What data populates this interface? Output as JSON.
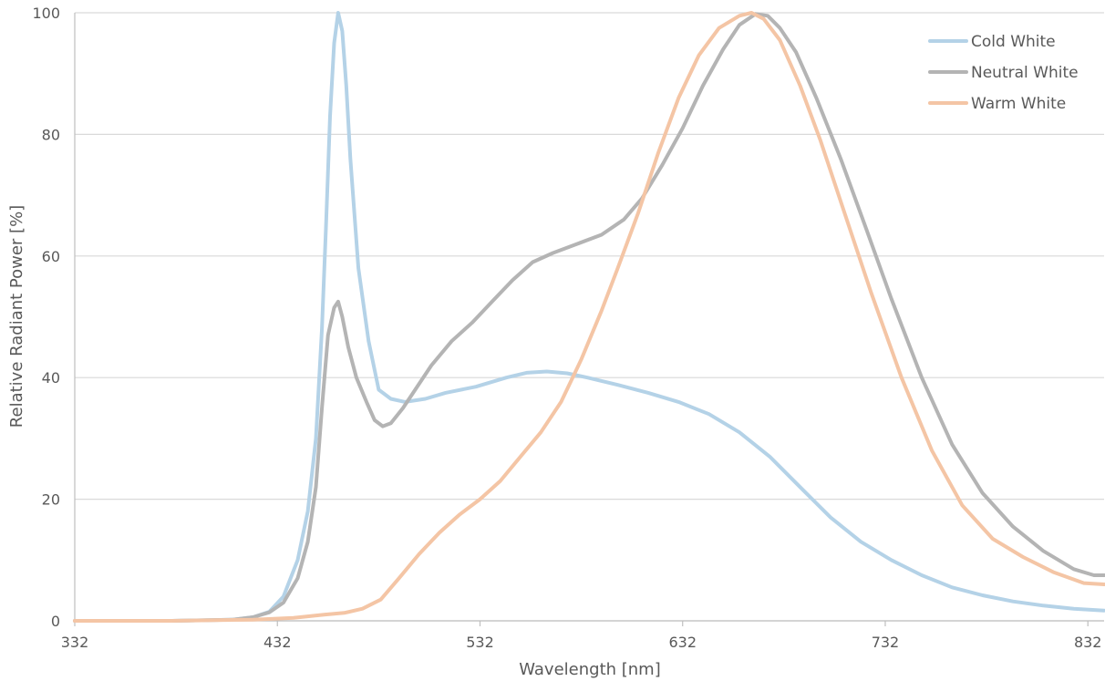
{
  "chart_data": {
    "type": "line",
    "title": "",
    "xlabel": "Wavelength [nm]",
    "ylabel": "Relative Radiant Power [%]",
    "xlim": [
      332,
      840
    ],
    "ylim": [
      0,
      100
    ],
    "x_ticks": [
      332,
      432,
      532,
      632,
      732,
      832
    ],
    "y_ticks": [
      0,
      20,
      40,
      60,
      80,
      100
    ],
    "grid": "horizontal",
    "legend_position": "top-right",
    "series": [
      {
        "name": "Cold White",
        "color": "#b4d2e7",
        "points": [
          [
            332,
            0
          ],
          [
            380,
            0
          ],
          [
            410,
            0.2
          ],
          [
            420,
            0.6
          ],
          [
            428,
            1.5
          ],
          [
            435,
            4
          ],
          [
            442,
            10
          ],
          [
            447,
            18
          ],
          [
            451,
            30
          ],
          [
            454,
            48
          ],
          [
            456,
            65
          ],
          [
            458,
            83
          ],
          [
            460,
            95
          ],
          [
            462,
            100
          ],
          [
            464,
            97
          ],
          [
            466,
            88
          ],
          [
            468,
            76
          ],
          [
            472,
            58
          ],
          [
            477,
            46
          ],
          [
            482,
            38
          ],
          [
            488,
            36.5
          ],
          [
            495,
            36
          ],
          [
            505,
            36.5
          ],
          [
            515,
            37.5
          ],
          [
            530,
            38.5
          ],
          [
            545,
            40
          ],
          [
            555,
            40.8
          ],
          [
            565,
            41
          ],
          [
            575,
            40.7
          ],
          [
            585,
            40
          ],
          [
            600,
            38.8
          ],
          [
            615,
            37.5
          ],
          [
            630,
            36
          ],
          [
            645,
            34
          ],
          [
            660,
            31
          ],
          [
            675,
            27
          ],
          [
            690,
            22
          ],
          [
            705,
            17
          ],
          [
            720,
            13
          ],
          [
            735,
            10
          ],
          [
            750,
            7.5
          ],
          [
            765,
            5.5
          ],
          [
            780,
            4.2
          ],
          [
            795,
            3.2
          ],
          [
            810,
            2.5
          ],
          [
            825,
            2
          ],
          [
            840,
            1.7
          ]
        ]
      },
      {
        "name": "Neutral White",
        "color": "#b4b4b4",
        "points": [
          [
            332,
            0
          ],
          [
            380,
            0
          ],
          [
            410,
            0.2
          ],
          [
            420,
            0.6
          ],
          [
            428,
            1.4
          ],
          [
            435,
            3
          ],
          [
            442,
            7
          ],
          [
            447,
            13
          ],
          [
            451,
            22
          ],
          [
            454,
            35
          ],
          [
            457,
            47
          ],
          [
            460,
            51.5
          ],
          [
            462,
            52.5
          ],
          [
            464,
            50
          ],
          [
            467,
            45
          ],
          [
            471,
            40
          ],
          [
            476,
            36
          ],
          [
            480,
            33
          ],
          [
            484,
            32
          ],
          [
            488,
            32.5
          ],
          [
            494,
            35
          ],
          [
            500,
            38
          ],
          [
            508,
            42
          ],
          [
            518,
            46
          ],
          [
            528,
            49
          ],
          [
            538,
            52.5
          ],
          [
            548,
            56
          ],
          [
            558,
            59
          ],
          [
            568,
            60.5
          ],
          [
            580,
            62
          ],
          [
            592,
            63.5
          ],
          [
            603,
            66
          ],
          [
            612,
            69.5
          ],
          [
            622,
            75
          ],
          [
            632,
            81
          ],
          [
            642,
            88
          ],
          [
            652,
            94
          ],
          [
            660,
            98
          ],
          [
            668,
            99.8
          ],
          [
            674,
            99.5
          ],
          [
            680,
            97.5
          ],
          [
            688,
            93.5
          ],
          [
            698,
            86
          ],
          [
            710,
            76
          ],
          [
            722,
            65
          ],
          [
            735,
            53
          ],
          [
            750,
            40
          ],
          [
            765,
            29
          ],
          [
            780,
            21
          ],
          [
            795,
            15.5
          ],
          [
            810,
            11.5
          ],
          [
            825,
            8.5
          ],
          [
            835,
            7.5
          ],
          [
            840,
            7.5
          ]
        ]
      },
      {
        "name": "Warm White",
        "color": "#f4c5a5",
        "points": [
          [
            332,
            0
          ],
          [
            380,
            0
          ],
          [
            420,
            0.2
          ],
          [
            440,
            0.5
          ],
          [
            455,
            1
          ],
          [
            465,
            1.3
          ],
          [
            474,
            2
          ],
          [
            483,
            3.5
          ],
          [
            492,
            7
          ],
          [
            502,
            11
          ],
          [
            512,
            14.5
          ],
          [
            522,
            17.5
          ],
          [
            532,
            20
          ],
          [
            542,
            23
          ],
          [
            552,
            27
          ],
          [
            562,
            31
          ],
          [
            572,
            36
          ],
          [
            582,
            43
          ],
          [
            592,
            51
          ],
          [
            600,
            58
          ],
          [
            610,
            67
          ],
          [
            620,
            77
          ],
          [
            630,
            86
          ],
          [
            640,
            93
          ],
          [
            650,
            97.5
          ],
          [
            660,
            99.5
          ],
          [
            666,
            100
          ],
          [
            672,
            99
          ],
          [
            680,
            95.5
          ],
          [
            690,
            88
          ],
          [
            700,
            79
          ],
          [
            712,
            67
          ],
          [
            725,
            54
          ],
          [
            740,
            40
          ],
          [
            755,
            28
          ],
          [
            770,
            19
          ],
          [
            785,
            13.5
          ],
          [
            800,
            10.5
          ],
          [
            815,
            8
          ],
          [
            830,
            6.2
          ],
          [
            840,
            6
          ]
        ]
      }
    ]
  }
}
